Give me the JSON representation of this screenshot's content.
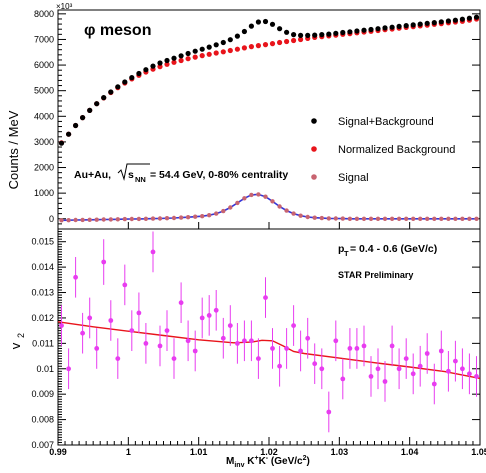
{
  "chart_data": [
    {
      "type": "scatter",
      "panel": "top",
      "title": "φ meson",
      "ylabel": "Counts / MeV",
      "y_exponent_label": "×10³",
      "annotation_collision": "Au+Au,",
      "annotation_energy_sqrt": "s",
      "annotation_energy_sub": "NN",
      "annotation_energy_rest": " = 54.4 GeV, 0-80% centrality",
      "xlim": [
        0.99,
        1.05
      ],
      "ylim": [
        -400,
        8150
      ],
      "y_ticks": [
        0,
        1000,
        2000,
        3000,
        4000,
        5000,
        6000,
        7000,
        8000
      ],
      "y_tick_labels": [
        "0",
        "1000",
        "2000",
        "3000",
        "4000",
        "5000",
        "6000",
        "7000",
        "8000"
      ],
      "legend_position": "right",
      "series": [
        {
          "name": "Signal+Background",
          "color": "#000000",
          "x": [
            0.9905,
            0.9915,
            0.9925,
            0.9935,
            0.9945,
            0.9955,
            0.9965,
            0.9975,
            0.9985,
            0.9995,
            1.0005,
            1.0015,
            1.0025,
            1.0035,
            1.0045,
            1.0055,
            1.0065,
            1.0075,
            1.0085,
            1.0095,
            1.0105,
            1.0115,
            1.0125,
            1.0135,
            1.0145,
            1.0155,
            1.0165,
            1.0175,
            1.0185,
            1.0195,
            1.0205,
            1.0215,
            1.0225,
            1.0235,
            1.0245,
            1.0255,
            1.0265,
            1.0275,
            1.0285,
            1.0295,
            1.0305,
            1.0315,
            1.0325,
            1.0335,
            1.0345,
            1.0355,
            1.0365,
            1.0375,
            1.0385,
            1.0395,
            1.0405,
            1.0415,
            1.0425,
            1.0435,
            1.0445,
            1.0455,
            1.0465,
            1.0475,
            1.0485,
            1.0495
          ],
          "y": [
            2950,
            3300,
            3640,
            3950,
            4230,
            4490,
            4730,
            4950,
            5150,
            5340,
            5510,
            5670,
            5820,
            5960,
            6080,
            6180,
            6270,
            6360,
            6450,
            6540,
            6620,
            6700,
            6790,
            6880,
            6990,
            7130,
            7310,
            7520,
            7680,
            7700,
            7590,
            7420,
            7280,
            7190,
            7160,
            7160,
            7170,
            7190,
            7210,
            7240,
            7270,
            7300,
            7330,
            7360,
            7390,
            7420,
            7450,
            7480,
            7510,
            7540,
            7570,
            7600,
            7630,
            7660,
            7690,
            7720,
            7750,
            7790,
            7830,
            7870
          ]
        },
        {
          "name": "Normalized Background",
          "color": "#e8141b",
          "x": [
            0.9905,
            0.9915,
            0.9925,
            0.9935,
            0.9945,
            0.9955,
            0.9965,
            0.9975,
            0.9985,
            0.9995,
            1.0005,
            1.0015,
            1.0025,
            1.0035,
            1.0045,
            1.0055,
            1.0065,
            1.0075,
            1.0085,
            1.0095,
            1.0105,
            1.0115,
            1.0125,
            1.0135,
            1.0145,
            1.0155,
            1.0165,
            1.0175,
            1.0185,
            1.0195,
            1.0205,
            1.0215,
            1.0225,
            1.0235,
            1.0245,
            1.0255,
            1.0265,
            1.0275,
            1.0285,
            1.0295,
            1.0305,
            1.0315,
            1.0325,
            1.0335,
            1.0345,
            1.0355,
            1.0365,
            1.0375,
            1.0385,
            1.0395,
            1.0405,
            1.0415,
            1.0425,
            1.0435,
            1.0445,
            1.0455,
            1.0465,
            1.0475,
            1.0485,
            1.0495
          ],
          "y": [
            2960,
            3300,
            3640,
            3950,
            4230,
            4490,
            4720,
            4930,
            5120,
            5300,
            5460,
            5600,
            5730,
            5840,
            5940,
            6030,
            6110,
            6180,
            6250,
            6310,
            6370,
            6420,
            6470,
            6520,
            6570,
            6620,
            6670,
            6720,
            6760,
            6800,
            6840,
            6880,
            6920,
            6960,
            7000,
            7040,
            7080,
            7110,
            7140,
            7170,
            7200,
            7230,
            7260,
            7290,
            7320,
            7350,
            7380,
            7410,
            7440,
            7470,
            7500,
            7530,
            7560,
            7590,
            7620,
            7650,
            7680,
            7710,
            7750,
            7800
          ]
        },
        {
          "name": "Signal",
          "color": "#c86470",
          "x": [
            0.9905,
            0.9915,
            0.9925,
            0.9935,
            0.9945,
            0.9955,
            0.9965,
            0.9975,
            0.9985,
            0.9995,
            1.0005,
            1.0015,
            1.0025,
            1.0035,
            1.0045,
            1.0055,
            1.0065,
            1.0075,
            1.0085,
            1.0095,
            1.0105,
            1.0115,
            1.0125,
            1.0135,
            1.0145,
            1.0155,
            1.0165,
            1.0175,
            1.0185,
            1.0195,
            1.0205,
            1.0215,
            1.0225,
            1.0235,
            1.0245,
            1.0255,
            1.0265,
            1.0275,
            1.0285,
            1.0295,
            1.0305,
            1.0315,
            1.0325,
            1.0335,
            1.0345,
            1.0355,
            1.0365,
            1.0375,
            1.0385,
            1.0395,
            1.0405,
            1.0415,
            1.0425,
            1.0435,
            1.0445,
            1.0455,
            1.0465,
            1.0475,
            1.0485,
            1.0495
          ],
          "y": [
            -60,
            -55,
            -50,
            -45,
            -40,
            -35,
            -30,
            -25,
            -20,
            -15,
            -10,
            -5,
            0,
            5,
            10,
            20,
            30,
            45,
            60,
            80,
            100,
            140,
            200,
            300,
            440,
            620,
            800,
            930,
            950,
            860,
            680,
            480,
            320,
            200,
            120,
            70,
            40,
            25,
            15,
            10,
            5,
            0,
            0,
            0,
            0,
            0,
            0,
            0,
            0,
            0,
            0,
            0,
            0,
            0,
            0,
            0,
            0,
            0,
            0,
            0
          ]
        }
      ],
      "fit_color": "#3535d8"
    },
    {
      "type": "scatter",
      "panel": "bottom",
      "ylabel": "v",
      "ylabel_sub": "2",
      "xlabel_main": "M",
      "xlabel_sub": "inv",
      "xlabel_rest": " K",
      "xlabel_sup1": "+",
      "xlabel_k2": "K",
      "xlabel_sup2": "-",
      "xlabel_units": " (GeV/c",
      "xlabel_units_sup": "2",
      "xlabel_close": ")",
      "annotation_pt_main": "p",
      "annotation_pt_sub": "T",
      "annotation_pt_rest": " = 0.4 - 0.6 (GeV/c)",
      "annotation_preliminary": "STAR Preliminary",
      "xlim": [
        0.99,
        1.05
      ],
      "ylim": [
        0.007,
        0.0155
      ],
      "x_ticks": [
        0.99,
        1.0,
        1.01,
        1.02,
        1.03,
        1.04,
        1.05
      ],
      "x_tick_labels": [
        "0.99",
        "1",
        "1.01",
        "1.02",
        "1.03",
        "1.04",
        "1.05"
      ],
      "y_ticks": [
        0.007,
        0.008,
        0.009,
        0.01,
        0.011,
        0.012,
        0.013,
        0.014,
        0.015
      ],
      "y_tick_labels": [
        "0.007",
        "0.008",
        "0.009",
        "0.01",
        "0.011",
        "0.012",
        "0.013",
        "0.014",
        "0.015"
      ],
      "data_color": "#e83cf0",
      "fit_color": "#e8141b",
      "points": {
        "x": [
          0.9905,
          0.9915,
          0.9925,
          0.9935,
          0.9945,
          0.9955,
          0.9965,
          0.9975,
          0.9985,
          0.9995,
          1.0005,
          1.0015,
          1.0025,
          1.0035,
          1.0045,
          1.0055,
          1.0065,
          1.0075,
          1.0085,
          1.0095,
          1.0105,
          1.0115,
          1.0125,
          1.0135,
          1.0145,
          1.0155,
          1.0165,
          1.0175,
          1.0185,
          1.0195,
          1.0205,
          1.0215,
          1.0225,
          1.0235,
          1.0245,
          1.0255,
          1.0265,
          1.0275,
          1.0285,
          1.0295,
          1.0305,
          1.0315,
          1.0325,
          1.0335,
          1.0345,
          1.0355,
          1.0365,
          1.0375,
          1.0385,
          1.0395,
          1.0405,
          1.0415,
          1.0425,
          1.0435,
          1.0445,
          1.0455,
          1.0465,
          1.0475,
          1.0485,
          1.0495
        ],
        "y": [
          0.0117,
          0.01,
          0.0136,
          0.0114,
          0.012,
          0.0108,
          0.0142,
          0.0119,
          0.0104,
          0.0133,
          0.0115,
          0.0122,
          0.011,
          0.0146,
          0.0109,
          0.0115,
          0.0104,
          0.0126,
          0.0111,
          0.0107,
          0.012,
          0.0121,
          0.0123,
          0.0112,
          0.0117,
          0.011,
          0.0111,
          0.0111,
          0.0104,
          0.0128,
          0.0108,
          0.0101,
          0.0108,
          0.0117,
          0.0107,
          0.0112,
          0.0102,
          0.01,
          0.0083,
          0.0111,
          0.0096,
          0.0108,
          0.0108,
          0.0109,
          0.0097,
          0.01,
          0.0095,
          0.0109,
          0.01,
          0.0104,
          0.0098,
          0.0101,
          0.0106,
          0.0094,
          0.0107,
          0.0099,
          0.0103,
          0.01,
          0.0098,
          0.0097
        ],
        "err": [
          0.0008,
          0.0008,
          0.0008,
          0.0008,
          0.0008,
          0.0008,
          0.0009,
          0.0008,
          0.0008,
          0.0008,
          0.0008,
          0.0008,
          0.0008,
          0.0008,
          0.0008,
          0.0008,
          0.0008,
          0.0008,
          0.0008,
          0.0008,
          0.0008,
          0.0008,
          0.0008,
          0.0008,
          0.0008,
          0.0008,
          0.0008,
          0.0008,
          0.0008,
          0.0008,
          0.0008,
          0.0008,
          0.0008,
          0.0008,
          0.0008,
          0.0008,
          0.0008,
          0.0008,
          0.0008,
          0.0008,
          0.0008,
          0.0008,
          0.0008,
          0.0008,
          0.0008,
          0.0008,
          0.0008,
          0.0008,
          0.0008,
          0.0008,
          0.0008,
          0.0008,
          0.0008,
          0.0008,
          0.0008,
          0.0008,
          0.0008,
          0.0008,
          0.0008,
          0.0008
        ]
      },
      "fit": {
        "x": [
          0.99,
          0.995,
          1.0,
          1.005,
          1.01,
          1.015,
          1.0175,
          1.019,
          1.0205,
          1.022,
          1.0235,
          1.025,
          1.03,
          1.035,
          1.04,
          1.045,
          1.05
        ],
        "y": [
          0.01185,
          0.01165,
          0.01148,
          0.01131,
          0.01114,
          0.01102,
          0.01105,
          0.01112,
          0.0111,
          0.0109,
          0.01068,
          0.0106,
          0.01042,
          0.01024,
          0.01007,
          0.00989,
          0.00962
        ]
      }
    }
  ]
}
